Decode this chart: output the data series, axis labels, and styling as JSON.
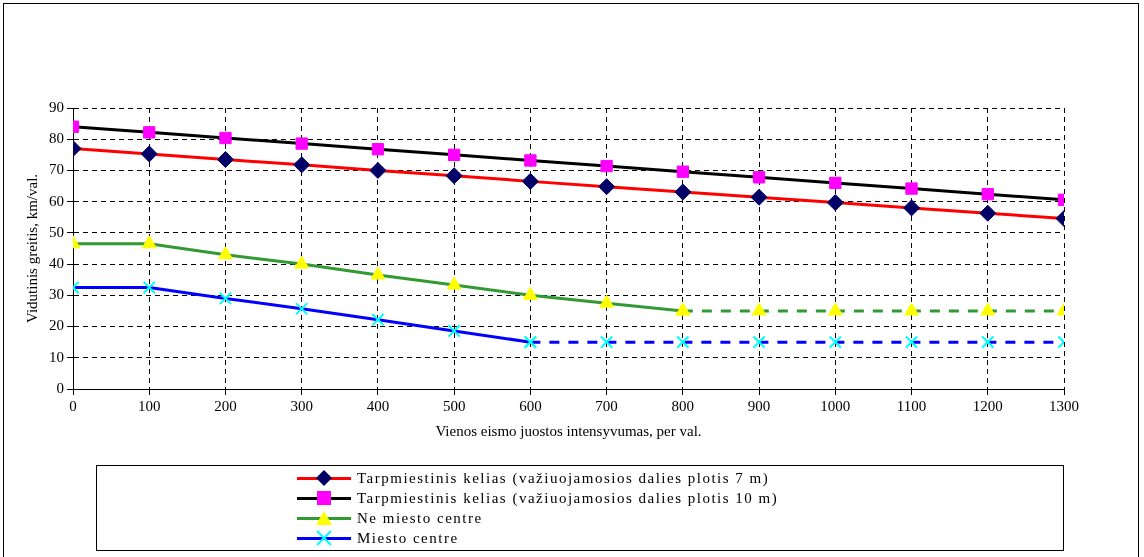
{
  "chart_data": {
    "type": "line",
    "xlabel": "Vienos eismo juostos intensyvumas, per val.",
    "ylabel": "Vidutinis greitis, km/val.",
    "x": [
      0,
      100,
      200,
      300,
      400,
      500,
      600,
      700,
      800,
      900,
      1000,
      1100,
      1200,
      1300
    ],
    "xlim": [
      0,
      1300
    ],
    "xticks": [
      0,
      100,
      200,
      300,
      400,
      500,
      600,
      700,
      800,
      900,
      1000,
      1100,
      1200,
      1300
    ],
    "ylim": [
      0,
      90
    ],
    "yticks": [
      0,
      10,
      20,
      30,
      40,
      50,
      60,
      70,
      80,
      90
    ],
    "grid": true,
    "legend": "bottom",
    "series": [
      {
        "name": "Tarpmiestinis kelias (važiuojamosios dalies plotis 7 m)",
        "color": "#ff0000",
        "marker": "diamond",
        "line_style": "solid",
        "colors": [
          "#000066",
          "#000066",
          "#000066",
          "#000066",
          "#000066",
          "#000066",
          "#000066",
          "#000066",
          "#000066",
          "#000066",
          "#000066",
          "#000066",
          "#000066",
          "#000066"
        ],
        "values": [
          77,
          75.3,
          73.5,
          71.8,
          70,
          68.3,
          66.5,
          64.8,
          63.1,
          61.4,
          59.7,
          58,
          56.3,
          54.6
        ]
      },
      {
        "name": "Tarpmiestinis kelias (važiuojamosios dalies plotis 10 m)",
        "color": "#000000",
        "marker": "square",
        "line_style": "solid",
        "colors": [
          "#ff00ff",
          "#ff00ff",
          "#ff00ff",
          "#ff00ff",
          "#ff00ff",
          "#ff00ff",
          "#ff00ff",
          "#ff00ff",
          "#ff00ff",
          "#ff00ff",
          "#ff00ff",
          "#ff00ff",
          "#ff00ff",
          "#ff00ff"
        ],
        "values": [
          84,
          82.2,
          80.4,
          78.6,
          76.8,
          75,
          73.2,
          71.4,
          69.6,
          67.8,
          66,
          64.2,
          62.4,
          60.6
        ]
      },
      {
        "name": "Ne miesto centre",
        "color": "#339933",
        "marker": "triangle",
        "line_style": "solid",
        "colors": [
          "#ffff00",
          "#ffff00",
          "#ffff00",
          "#ffff00",
          "#ffff00",
          "#ffff00",
          "#ffff00",
          "#ffff00",
          "#ffff00",
          null,
          null,
          null,
          null,
          null
        ],
        "values": [
          46.5,
          46.5,
          43,
          40,
          36.5,
          33.3,
          30,
          27.5,
          25,
          null,
          null,
          null,
          null,
          null
        ]
      },
      {
        "color": "#339933",
        "marker": "triangle",
        "line_style": "dashed",
        "colors": [
          null,
          null,
          null,
          null,
          null,
          null,
          null,
          null,
          "#ffff00",
          "#ffff00",
          "#ffff00",
          "#ffff00",
          "#ffff00",
          "#ffff00"
        ],
        "values": [
          null,
          null,
          null,
          null,
          null,
          null,
          null,
          null,
          25,
          25,
          25,
          25,
          25,
          25
        ]
      },
      {
        "name": "Miesto centre",
        "color": "#0000ff",
        "marker": "cross",
        "line_style": "solid",
        "colors": [
          "#00ffff",
          "#00ffff",
          "#00ffff",
          "#00ffff",
          "#00ffff",
          "#00ffff",
          "#00ffff",
          null,
          null,
          null,
          null,
          null,
          null,
          null
        ],
        "values": [
          32.5,
          32.5,
          29,
          25.7,
          22.2,
          18.6,
          15,
          null,
          null,
          null,
          null,
          null,
          null,
          null
        ]
      },
      {
        "color": "#0000ff",
        "marker": "cross",
        "line_style": "dashed",
        "colors": [
          null,
          null,
          null,
          null,
          null,
          null,
          "#00ffff",
          "#00ffff",
          "#00ffff",
          "#00ffff",
          "#00ffff",
          "#00ffff",
          "#00ffff",
          "#00ffff"
        ],
        "values": [
          null,
          null,
          null,
          null,
          null,
          null,
          15,
          15,
          15,
          15,
          15,
          15,
          15,
          15
        ]
      }
    ]
  }
}
